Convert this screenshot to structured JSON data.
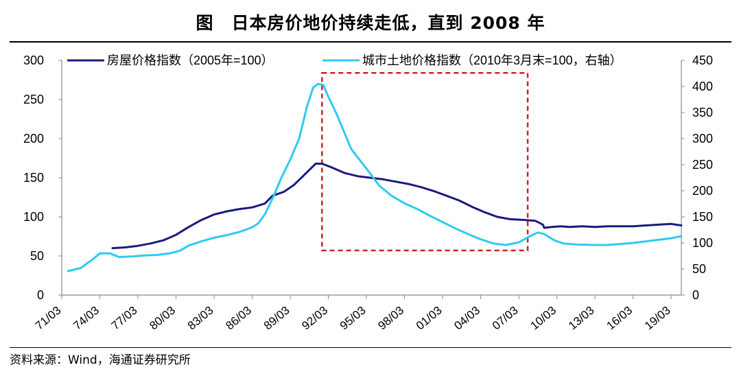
{
  "title": "图　日本房价地价持续走低，直到 2008 年",
  "source": "资料来源：Wind，海通证券研究所",
  "chart_data": {
    "type": "line",
    "x_ticks": [
      "71/03",
      "74/03",
      "77/03",
      "80/03",
      "83/03",
      "86/03",
      "89/03",
      "92/03",
      "95/03",
      "98/03",
      "01/03",
      "04/03",
      "07/03",
      "10/03",
      "13/03",
      "16/03",
      "19/03"
    ],
    "xlim": [
      1971.0,
      2019.8
    ],
    "ylim_left": [
      0,
      300
    ],
    "yticks_left": [
      "0",
      "50",
      "100",
      "150",
      "200",
      "250",
      "300"
    ],
    "ylim_right": [
      0,
      450
    ],
    "yticks_right": [
      "0",
      "50",
      "100",
      "150",
      "200",
      "250",
      "300",
      "350",
      "400",
      "450"
    ],
    "grid": false,
    "legend_position": "top",
    "highlight_box": {
      "x0": 1991.5,
      "x1": 2007.7,
      "y0_left": 57,
      "y1_left": 284,
      "color": "#cc2222"
    },
    "series": [
      {
        "name": "房屋价格指数（2005年=100）",
        "axis": "left",
        "color": "#1a1a7e",
        "points": [
          [
            1975.0,
            60
          ],
          [
            1976.0,
            61
          ],
          [
            1977.0,
            63
          ],
          [
            1978.0,
            66
          ],
          [
            1979.0,
            70
          ],
          [
            1980.0,
            77
          ],
          [
            1981.0,
            87
          ],
          [
            1982.0,
            96
          ],
          [
            1983.0,
            103
          ],
          [
            1984.0,
            107
          ],
          [
            1985.0,
            110
          ],
          [
            1986.0,
            112
          ],
          [
            1987.0,
            117
          ],
          [
            1987.6,
            127
          ],
          [
            1988.5,
            132
          ],
          [
            1989.3,
            141
          ],
          [
            1990.0,
            152
          ],
          [
            1991.0,
            168
          ],
          [
            1991.5,
            168
          ],
          [
            1992.3,
            163
          ],
          [
            1993.3,
            156
          ],
          [
            1994.3,
            152
          ],
          [
            1995.3,
            150
          ],
          [
            1996.3,
            148
          ],
          [
            1997.3,
            145
          ],
          [
            1998.3,
            142
          ],
          [
            1999.3,
            138
          ],
          [
            2000.3,
            133
          ],
          [
            2001.3,
            127
          ],
          [
            2002.3,
            121
          ],
          [
            2003.3,
            113
          ],
          [
            2004.3,
            106
          ],
          [
            2005.3,
            100
          ],
          [
            2006.3,
            97
          ],
          [
            2007.5,
            96
          ],
          [
            2008.3,
            95
          ],
          [
            2008.9,
            90
          ],
          [
            2009.0,
            86
          ],
          [
            2009.6,
            87
          ],
          [
            2010.3,
            88
          ],
          [
            2011.0,
            87
          ],
          [
            2012.0,
            88
          ],
          [
            2013.0,
            87
          ],
          [
            2014.0,
            88
          ],
          [
            2015.0,
            88
          ],
          [
            2016.0,
            88
          ],
          [
            2017.0,
            89
          ],
          [
            2018.0,
            90
          ],
          [
            2019.0,
            91
          ],
          [
            2019.8,
            89
          ]
        ]
      },
      {
        "name": "城市土地价格指数（2010年3月末=100，右轴）",
        "axis": "right",
        "color": "#2ecaf0",
        "points": [
          [
            1971.5,
            46
          ],
          [
            1972.5,
            52
          ],
          [
            1973.5,
            70
          ],
          [
            1974.0,
            80
          ],
          [
            1974.8,
            80
          ],
          [
            1975.5,
            73
          ],
          [
            1976.5,
            74
          ],
          [
            1977.5,
            76
          ],
          [
            1978.5,
            77
          ],
          [
            1979.5,
            80
          ],
          [
            1980.3,
            85
          ],
          [
            1981.0,
            95
          ],
          [
            1982.0,
            103
          ],
          [
            1983.0,
            110
          ],
          [
            1984.0,
            115
          ],
          [
            1985.0,
            121
          ],
          [
            1986.0,
            130
          ],
          [
            1986.5,
            138
          ],
          [
            1987.0,
            155
          ],
          [
            1987.6,
            185
          ],
          [
            1988.3,
            225
          ],
          [
            1989.0,
            260
          ],
          [
            1989.7,
            300
          ],
          [
            1990.3,
            360
          ],
          [
            1990.8,
            398
          ],
          [
            1991.2,
            405
          ],
          [
            1991.6,
            403
          ],
          [
            1992.0,
            380
          ],
          [
            1992.6,
            350
          ],
          [
            1993.2,
            315
          ],
          [
            1993.8,
            280
          ],
          [
            1994.6,
            255
          ],
          [
            1995.3,
            233
          ],
          [
            1996.0,
            210
          ],
          [
            1997.0,
            190
          ],
          [
            1998.0,
            176
          ],
          [
            1999.0,
            165
          ],
          [
            2000.0,
            152
          ],
          [
            2001.0,
            140
          ],
          [
            2002.0,
            128
          ],
          [
            2003.0,
            117
          ],
          [
            2004.0,
            107
          ],
          [
            2005.0,
            99
          ],
          [
            2006.0,
            96
          ],
          [
            2007.0,
            101
          ],
          [
            2007.8,
            112
          ],
          [
            2008.5,
            120
          ],
          [
            2009.0,
            117
          ],
          [
            2009.8,
            105
          ],
          [
            2010.5,
            99
          ],
          [
            2011.5,
            97
          ],
          [
            2013.0,
            96
          ],
          [
            2014.0,
            96
          ],
          [
            2015.0,
            98
          ],
          [
            2016.0,
            100
          ],
          [
            2017.0,
            103
          ],
          [
            2018.0,
            106
          ],
          [
            2019.0,
            109
          ],
          [
            2019.8,
            113
          ]
        ]
      }
    ]
  }
}
